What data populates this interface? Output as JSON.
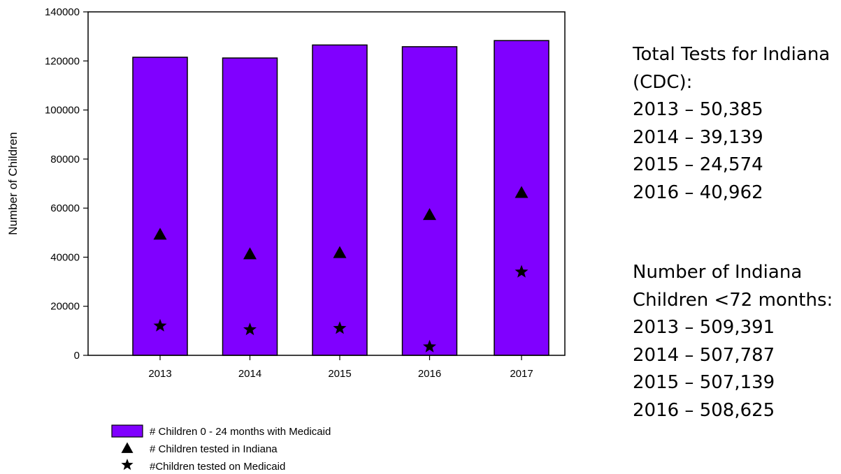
{
  "chart_data": {
    "type": "bar",
    "categories": [
      "2013",
      "2014",
      "2015",
      "2016",
      "2017"
    ],
    "ylabel": "Number of Children",
    "xlabel": "",
    "ylim": [
      0,
      140000
    ],
    "yticks": [
      0,
      20000,
      40000,
      60000,
      80000,
      100000,
      120000,
      140000
    ],
    "grid": false,
    "legend_position": "bottom-left",
    "series": [
      {
        "name": "# Children 0 - 24 months with Medicaid",
        "type": "bar",
        "color": "#8000ff",
        "values": [
          121500,
          121200,
          126500,
          125800,
          128300
        ]
      },
      {
        "name": "# Children tested in Indiana",
        "type": "scatter",
        "marker": "triangle",
        "color": "#000000",
        "values": [
          49000,
          41000,
          41500,
          57000,
          66000
        ]
      },
      {
        "name": "#Children tested on Medicaid",
        "type": "scatter",
        "marker": "star",
        "color": "#000000",
        "values": [
          12000,
          10500,
          11000,
          3500,
          34000
        ]
      }
    ]
  },
  "info": {
    "tests_heading_line1": "Total Tests for Indiana",
    "tests_heading_line2": "(CDC):",
    "tests": [
      "2013 – 50,385",
      "2014 – 39,139",
      "2015 – 24,574",
      "2016 – 40,962"
    ],
    "children_heading_line1": "Number of Indiana",
    "children_heading_line2": "Children <72 months:",
    "children": [
      "2013 – 509,391",
      "2014 – 507,787",
      "2015 – 507,139",
      "2016 – 508,625"
    ]
  }
}
